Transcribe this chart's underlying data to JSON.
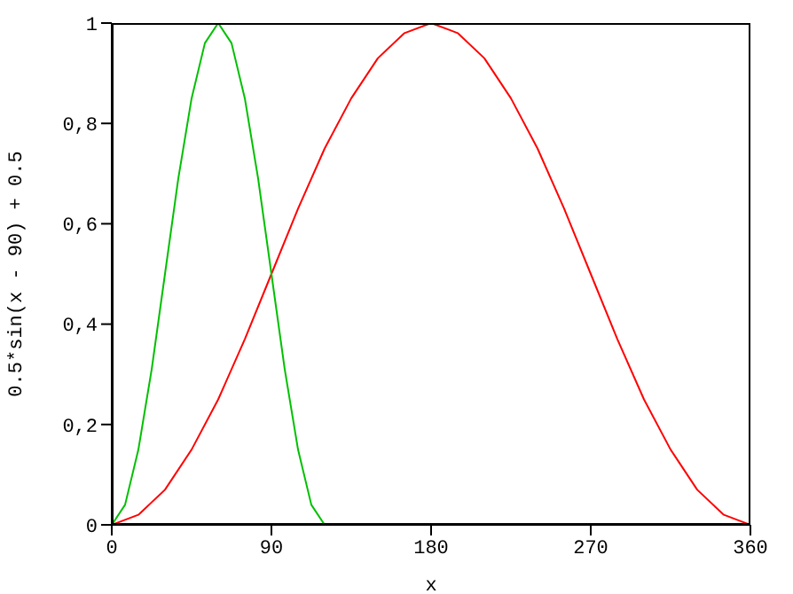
{
  "chart_data": {
    "type": "line",
    "xlabel": "x",
    "ylabel": "0.5*sin(x - 90) + 0.5",
    "xlim": [
      0,
      360
    ],
    "xticks": [
      0,
      90,
      180,
      270,
      360
    ],
    "ylim": [
      0,
      1
    ],
    "yticks": [
      0,
      {
        "value": 0.2,
        "label": "0,2"
      },
      {
        "value": 0.4,
        "label": "0,4"
      },
      {
        "value": 0.6,
        "label": "0,6"
      },
      {
        "value": 0.8,
        "label": "0,8"
      },
      1
    ],
    "series": [
      {
        "color": "#ff0000",
        "x": [
          0,
          15,
          30,
          45,
          60,
          75,
          90,
          105,
          120,
          135,
          150,
          165,
          180,
          195,
          210,
          225,
          240,
          255,
          270,
          285,
          300,
          315,
          330,
          345,
          360
        ],
        "values": [
          0,
          0.02,
          0.07,
          0.15,
          0.25,
          0.37,
          0.5,
          0.63,
          0.75,
          0.85,
          0.93,
          0.98,
          1,
          0.98,
          0.93,
          0.85,
          0.75,
          0.63,
          0.5,
          0.37,
          0.25,
          0.15,
          0.07,
          0.02,
          0
        ]
      },
      {
        "color": "#00c000",
        "x": [
          0,
          7.5,
          15,
          22.5,
          30,
          37.5,
          45,
          52.5,
          60,
          67.5,
          75,
          82.5,
          90,
          97.5,
          105,
          112.5,
          120
        ],
        "values": [
          0,
          0.04,
          0.15,
          0.31,
          0.5,
          0.69,
          0.85,
          0.96,
          1,
          0.96,
          0.85,
          0.69,
          0.5,
          0.31,
          0.15,
          0.04,
          0
        ]
      }
    ]
  }
}
